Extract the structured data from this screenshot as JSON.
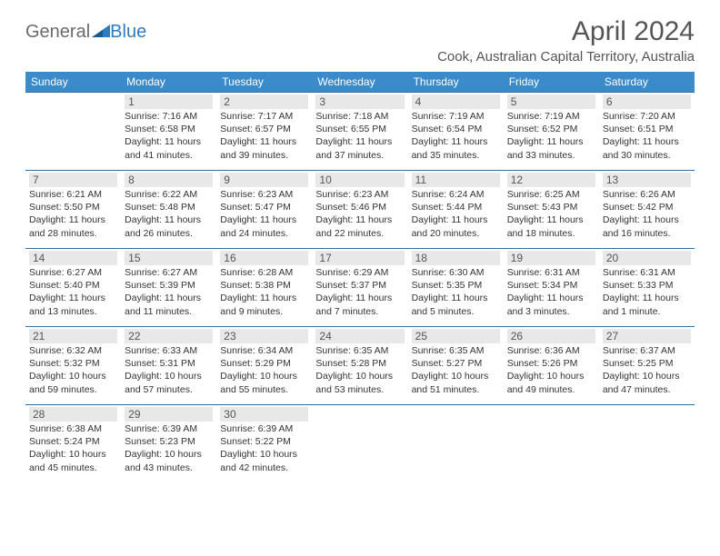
{
  "logo": {
    "part1": "General",
    "part2": "Blue"
  },
  "title": "April 2024",
  "location": "Cook, Australian Capital Territory, Australia",
  "colors": {
    "header_bg": "#3b8aca",
    "header_text": "#ffffff",
    "row_border": "#2f6fa8",
    "daynum_bg": "#e8e8e8",
    "text": "#333333",
    "logo_gray": "#6b6b6b",
    "logo_blue": "#2f7bbf"
  },
  "day_headers": [
    "Sunday",
    "Monday",
    "Tuesday",
    "Wednesday",
    "Thursday",
    "Friday",
    "Saturday"
  ],
  "weeks": [
    [
      {
        "empty": true
      },
      {
        "n": "1",
        "sr": "7:16 AM",
        "ss": "6:58 PM",
        "dh": "11",
        "dm": "41"
      },
      {
        "n": "2",
        "sr": "7:17 AM",
        "ss": "6:57 PM",
        "dh": "11",
        "dm": "39"
      },
      {
        "n": "3",
        "sr": "7:18 AM",
        "ss": "6:55 PM",
        "dh": "11",
        "dm": "37"
      },
      {
        "n": "4",
        "sr": "7:19 AM",
        "ss": "6:54 PM",
        "dh": "11",
        "dm": "35"
      },
      {
        "n": "5",
        "sr": "7:19 AM",
        "ss": "6:52 PM",
        "dh": "11",
        "dm": "33"
      },
      {
        "n": "6",
        "sr": "7:20 AM",
        "ss": "6:51 PM",
        "dh": "11",
        "dm": "30"
      }
    ],
    [
      {
        "n": "7",
        "sr": "6:21 AM",
        "ss": "5:50 PM",
        "dh": "11",
        "dm": "28"
      },
      {
        "n": "8",
        "sr": "6:22 AM",
        "ss": "5:48 PM",
        "dh": "11",
        "dm": "26"
      },
      {
        "n": "9",
        "sr": "6:23 AM",
        "ss": "5:47 PM",
        "dh": "11",
        "dm": "24"
      },
      {
        "n": "10",
        "sr": "6:23 AM",
        "ss": "5:46 PM",
        "dh": "11",
        "dm": "22"
      },
      {
        "n": "11",
        "sr": "6:24 AM",
        "ss": "5:44 PM",
        "dh": "11",
        "dm": "20"
      },
      {
        "n": "12",
        "sr": "6:25 AM",
        "ss": "5:43 PM",
        "dh": "11",
        "dm": "18"
      },
      {
        "n": "13",
        "sr": "6:26 AM",
        "ss": "5:42 PM",
        "dh": "11",
        "dm": "16"
      }
    ],
    [
      {
        "n": "14",
        "sr": "6:27 AM",
        "ss": "5:40 PM",
        "dh": "11",
        "dm": "13"
      },
      {
        "n": "15",
        "sr": "6:27 AM",
        "ss": "5:39 PM",
        "dh": "11",
        "dm": "11"
      },
      {
        "n": "16",
        "sr": "6:28 AM",
        "ss": "5:38 PM",
        "dh": "11",
        "dm": "9"
      },
      {
        "n": "17",
        "sr": "6:29 AM",
        "ss": "5:37 PM",
        "dh": "11",
        "dm": "7"
      },
      {
        "n": "18",
        "sr": "6:30 AM",
        "ss": "5:35 PM",
        "dh": "11",
        "dm": "5"
      },
      {
        "n": "19",
        "sr": "6:31 AM",
        "ss": "5:34 PM",
        "dh": "11",
        "dm": "3"
      },
      {
        "n": "20",
        "sr": "6:31 AM",
        "ss": "5:33 PM",
        "dh": "11",
        "dm": "1",
        "singular": true
      }
    ],
    [
      {
        "n": "21",
        "sr": "6:32 AM",
        "ss": "5:32 PM",
        "dh": "10",
        "dm": "59"
      },
      {
        "n": "22",
        "sr": "6:33 AM",
        "ss": "5:31 PM",
        "dh": "10",
        "dm": "57"
      },
      {
        "n": "23",
        "sr": "6:34 AM",
        "ss": "5:29 PM",
        "dh": "10",
        "dm": "55"
      },
      {
        "n": "24",
        "sr": "6:35 AM",
        "ss": "5:28 PM",
        "dh": "10",
        "dm": "53"
      },
      {
        "n": "25",
        "sr": "6:35 AM",
        "ss": "5:27 PM",
        "dh": "10",
        "dm": "51"
      },
      {
        "n": "26",
        "sr": "6:36 AM",
        "ss": "5:26 PM",
        "dh": "10",
        "dm": "49"
      },
      {
        "n": "27",
        "sr": "6:37 AM",
        "ss": "5:25 PM",
        "dh": "10",
        "dm": "47"
      }
    ],
    [
      {
        "n": "28",
        "sr": "6:38 AM",
        "ss": "5:24 PM",
        "dh": "10",
        "dm": "45"
      },
      {
        "n": "29",
        "sr": "6:39 AM",
        "ss": "5:23 PM",
        "dh": "10",
        "dm": "43"
      },
      {
        "n": "30",
        "sr": "6:39 AM",
        "ss": "5:22 PM",
        "dh": "10",
        "dm": "42"
      },
      {
        "empty": true
      },
      {
        "empty": true
      },
      {
        "empty": true
      },
      {
        "empty": true
      }
    ]
  ],
  "labels": {
    "sunrise": "Sunrise:",
    "sunset": "Sunset:",
    "daylight": "Daylight:",
    "hours": "hours",
    "and": "and",
    "minutes": "minutes.",
    "minute": "minute."
  }
}
